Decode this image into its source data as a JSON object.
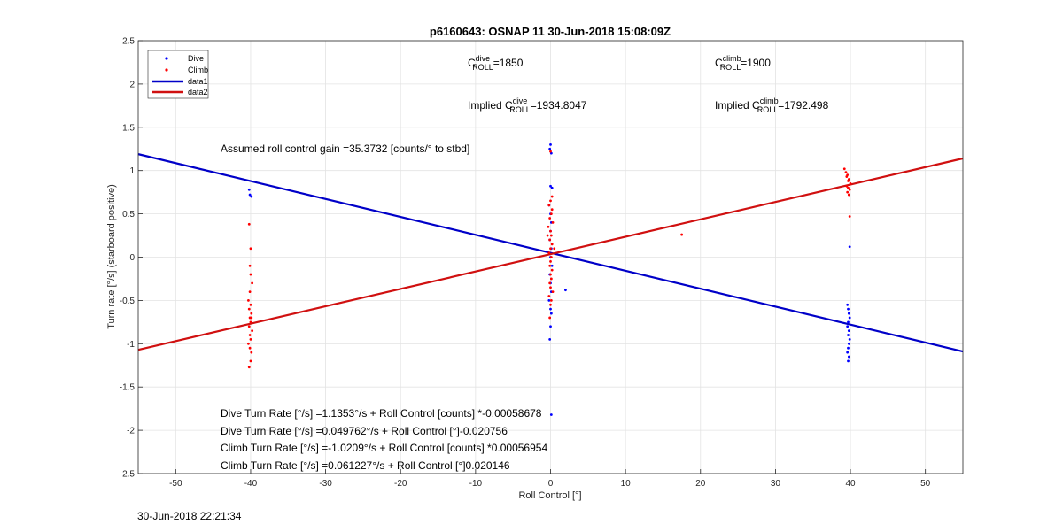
{
  "chart_data": {
    "type": "scatter",
    "title": "p6160643: OSNAP 11 30-Jun-2018 15:08:09Z",
    "xlabel": "Roll Control [°]",
    "ylabel": "Turn rate [°/s] (starboard positive)",
    "xlim": [
      -55,
      55
    ],
    "ylim": [
      -2.5,
      2.5
    ],
    "xticks": [
      -50,
      -40,
      -30,
      -20,
      -10,
      0,
      10,
      20,
      30,
      40,
      50
    ],
    "yticks": [
      -2.5,
      -2,
      -1.5,
      -1,
      -0.5,
      0,
      0.5,
      1,
      1.5,
      2,
      2.5
    ],
    "xtick_labels": [
      "-50",
      "-40",
      "-30",
      "-20",
      "-10",
      "0",
      "10",
      "20",
      "30",
      "40",
      "50"
    ],
    "ytick_labels": [
      "-2.5",
      "-2",
      "-1.5",
      "-1",
      "-0.5",
      "0",
      "0.5",
      "1",
      "1.5",
      "2",
      "2.5"
    ],
    "grid": true,
    "legend_position": "top-left",
    "series": [
      {
        "name": "Dive",
        "kind": "points",
        "color": "#0000ff",
        "x": [
          -40.2,
          -40.1,
          -39.9,
          0.0,
          -0.1,
          0.1,
          0.0,
          0.2,
          -0.2,
          0.1,
          0.0,
          -0.1,
          0.1,
          0.0,
          0.2,
          -0.1,
          0.0,
          0.1,
          -0.2,
          0.0,
          0.1,
          0.0,
          -0.1,
          0.1,
          0.0,
          2.0,
          39.6,
          39.7,
          39.8,
          39.9,
          39.7,
          39.6,
          39.8,
          39.7,
          39.9,
          39.8,
          39.7,
          39.6,
          39.8,
          39.7,
          39.9
        ],
        "y": [
          0.78,
          0.72,
          0.7,
          1.3,
          1.25,
          1.2,
          0.82,
          0.8,
          0.6,
          0.4,
          0.3,
          0.2,
          0.1,
          0.0,
          -0.1,
          -0.2,
          -0.3,
          -0.4,
          -0.5,
          -0.6,
          -0.65,
          -0.8,
          -0.95,
          -1.82,
          0.5,
          -0.38,
          -0.55,
          -0.6,
          -0.65,
          -0.7,
          -0.75,
          -0.8,
          -0.85,
          -0.9,
          -0.95,
          -1.0,
          -1.05,
          -1.1,
          -1.15,
          -1.2,
          0.12
        ]
      },
      {
        "name": "Climb",
        "kind": "points",
        "color": "#ff0000",
        "x": [
          -40.2,
          -40.0,
          -40.1,
          -39.8,
          -40.3,
          -40.0,
          -40.2,
          -39.9,
          -40.1,
          -40.0,
          -40.2,
          -39.8,
          -40.1,
          -40.0,
          -40.3,
          -40.1,
          -39.9,
          -40.0,
          -40.2,
          -40.1,
          -40.0,
          -39.9,
          0.0,
          -0.2,
          0.2,
          0.1,
          -0.1,
          0.3,
          -0.3,
          0.0,
          0.1,
          -0.1,
          0.2,
          0.0,
          -0.2,
          0.1,
          0.0,
          -0.1,
          0.2,
          0.0,
          0.1,
          -0.1,
          0.0,
          0.3,
          -0.2,
          0.1,
          0.0,
          -0.1,
          0.2,
          0.0,
          0.5,
          -0.4,
          17.5,
          39.2,
          39.4,
          39.6,
          39.8,
          40.0,
          39.5,
          39.7,
          39.9,
          39.6,
          39.8,
          39.7,
          39.5,
          39.9
        ],
        "y": [
          0.38,
          0.1,
          -0.1,
          -0.3,
          -0.5,
          -0.55,
          -0.6,
          -0.65,
          -0.7,
          -0.75,
          -0.8,
          -0.85,
          -0.9,
          -0.95,
          -1.0,
          -1.05,
          -1.1,
          -1.2,
          -1.27,
          -0.4,
          -0.2,
          -0.7,
          1.22,
          0.6,
          0.55,
          0.5,
          0.45,
          0.4,
          0.35,
          0.3,
          0.25,
          0.2,
          0.15,
          0.1,
          0.05,
          0.0,
          -0.05,
          -0.1,
          -0.15,
          -0.2,
          -0.25,
          -0.3,
          -0.35,
          -0.4,
          -0.45,
          -0.5,
          -0.55,
          -0.7,
          0.7,
          0.65,
          0.1,
          0.25,
          0.26,
          1.02,
          0.98,
          0.95,
          0.9,
          0.85,
          0.82,
          0.8,
          0.78,
          0.75,
          0.72,
          0.88,
          0.93,
          0.47
        ]
      },
      {
        "name": "data1",
        "kind": "line",
        "color": "#0000c8",
        "x": [
          -55,
          55
        ],
        "y": [
          1.19,
          -1.09
        ]
      },
      {
        "name": "data2",
        "kind": "line",
        "color": "#d01010",
        "x": [
          -55,
          55
        ],
        "y": [
          -1.07,
          1.14
        ]
      }
    ],
    "annotations": {
      "c_dive_sup": "dive",
      "c_dive_sub": "ROLL",
      "c_dive_val": "=1850",
      "c_climb_sup": "climb",
      "c_climb_sub": "ROLL",
      "c_climb_val": "=1900",
      "impl_dive_prefix": "Implied C",
      "impl_dive_sup": "dive",
      "impl_dive_sub": "ROLL",
      "impl_dive_val": "=1934.8047",
      "impl_climb_prefix": "Implied C",
      "impl_climb_sup": "climb",
      "impl_climb_sub": "ROLL",
      "impl_climb_val": "=1792.498",
      "c_letter": "C",
      "gain": "Assumed roll control gain =35.3732 [counts/° to stbd]",
      "eq1": "Dive Turn Rate [°/s] =1.1353°/s + Roll Control [counts] *-0.00058678",
      "eq2": "Dive Turn Rate [°/s] =0.049762°/s + Roll Control [°]-0.020756",
      "eq3": "Climb Turn Rate [°/s] =-1.0209°/s + Roll Control [counts] *0.00056954",
      "eq4": "Climb Turn Rate [°/s] =0.061227°/s + Roll Control [°]0.020146"
    }
  },
  "footer": {
    "timestamp": "30-Jun-2018 22:21:34"
  }
}
